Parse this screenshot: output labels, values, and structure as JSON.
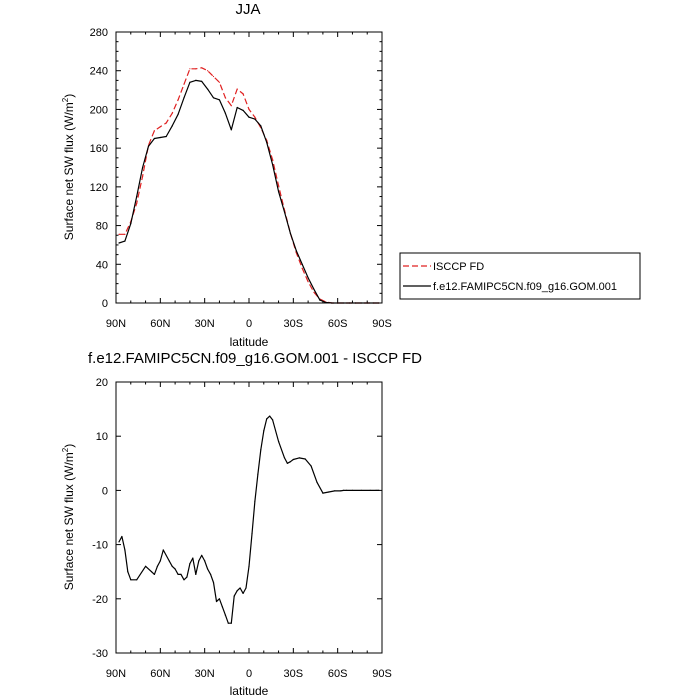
{
  "chart_data": [
    {
      "type": "line",
      "title": "JJA",
      "xlabel": "latitude",
      "ylabel": "Surface net SW flux (W/m²)",
      "ylabel_main": "Surface net SW flux (W/m",
      "ylabel_sup": "2",
      "ylabel_close": ")",
      "xlim": [
        90,
        -90
      ],
      "ylim": [
        0,
        280
      ],
      "xticks": [
        90,
        60,
        30,
        0,
        -30,
        -60,
        -90
      ],
      "xtick_labels": [
        "90N",
        "60N",
        "30N",
        "0",
        "30S",
        "60S",
        "90S"
      ],
      "yticks": [
        0,
        40,
        80,
        120,
        160,
        200,
        240,
        280
      ],
      "ytick_labels": [
        "0",
        "40",
        "80",
        "120",
        "160",
        "200",
        "240",
        "280"
      ],
      "legend": {
        "placement": "right",
        "entries": [
          "ISCCP FD",
          "f.e12.FAMIPC5CN.f09_g16.GOM.001"
        ]
      },
      "series": [
        {
          "name": "ISCCP FD",
          "color": "#e02020",
          "dash": "dashed",
          "x": [
            88,
            84,
            80,
            76,
            72,
            68,
            64,
            60,
            56,
            52,
            48,
            44,
            40,
            36,
            32,
            28,
            24,
            20,
            16,
            12,
            8,
            4,
            0,
            -4,
            -8,
            -12,
            -16,
            -20,
            -24,
            -28,
            -32,
            -36,
            -40,
            -44,
            -48,
            -52,
            -56,
            -60,
            -64,
            -68,
            -72,
            -76,
            -80,
            -84,
            -88
          ],
          "y": [
            71,
            71,
            84,
            103,
            131,
            163,
            178,
            182,
            186,
            196,
            210,
            226,
            242,
            242,
            243,
            240,
            234,
            228,
            212,
            204,
            221,
            216,
            200,
            192,
            181,
            168,
            148,
            121,
            96,
            72,
            52,
            36,
            22,
            11,
            4,
            1,
            0,
            0,
            0,
            0,
            0,
            0,
            0,
            0,
            0
          ]
        },
        {
          "name": "f.e12.FAMIPC5CN.f09_g16.GOM.001",
          "color": "#000000",
          "dash": "solid",
          "x": [
            88,
            84,
            80,
            76,
            72,
            68,
            64,
            60,
            56,
            52,
            48,
            44,
            40,
            36,
            32,
            28,
            24,
            20,
            16,
            12,
            8,
            4,
            0,
            -4,
            -8,
            -12,
            -16,
            -20,
            -24,
            -28,
            -32,
            -36,
            -40,
            -44,
            -48,
            -52,
            -56,
            -60,
            -64,
            -68,
            -72,
            -76,
            -80,
            -84,
            -88
          ],
          "y": [
            62,
            64,
            82,
            110,
            140,
            162,
            170,
            171,
            172,
            183,
            195,
            212,
            228,
            230,
            229,
            221,
            212,
            210,
            196,
            179,
            202,
            199,
            192,
            190,
            183,
            166,
            143,
            115,
            94,
            72,
            54,
            40,
            26,
            14,
            3,
            0.5,
            0,
            0,
            0,
            0,
            0,
            0,
            0,
            0,
            0
          ]
        }
      ]
    },
    {
      "type": "line",
      "title": "f.e12.FAMIPC5CN.f09_g16.GOM.001 - ISCCP FD",
      "xlabel": "latitude",
      "ylabel": "Surface net SW flux (W/m²)",
      "ylabel_main": "Surface net SW flux (W/m",
      "ylabel_sup": "2",
      "ylabel_close": ")",
      "xlim": [
        90,
        -90
      ],
      "ylim": [
        -30,
        20
      ],
      "xticks": [
        90,
        60,
        30,
        0,
        -30,
        -60,
        -90
      ],
      "xtick_labels": [
        "90N",
        "60N",
        "30N",
        "0",
        "30S",
        "60S",
        "90S"
      ],
      "yticks": [
        -30,
        -20,
        -10,
        0,
        10,
        20
      ],
      "ytick_labels": [
        "-30",
        "-20",
        "-10",
        "0",
        "10",
        "20"
      ],
      "series": [
        {
          "color": "#000000",
          "dash": "solid",
          "x": [
            88,
            86,
            84,
            82,
            80,
            76,
            70,
            66,
            64,
            62,
            60,
            58,
            54,
            52,
            50,
            48,
            46,
            44,
            42,
            40,
            38,
            36,
            34,
            32,
            30,
            28,
            26,
            24,
            22,
            20,
            18,
            16,
            14,
            12,
            10,
            8,
            6,
            4,
            2,
            0,
            -2,
            -4,
            -6,
            -8,
            -10,
            -12,
            -14,
            -16,
            -20,
            -24,
            -26,
            -28,
            -30,
            -34,
            -38,
            -42,
            -46,
            -50,
            -54,
            -58,
            -62,
            -64,
            -66,
            -70,
            -76,
            -82,
            -86,
            -88
          ],
          "y": [
            -9.5,
            -8.5,
            -11,
            -15,
            -16.5,
            -16.5,
            -14,
            -15,
            -15.5,
            -14,
            -13,
            -11,
            -13,
            -14,
            -14.5,
            -15.5,
            -15.5,
            -16.5,
            -16,
            -13.5,
            -12.5,
            -15.5,
            -13,
            -12,
            -13,
            -14.5,
            -15.5,
            -17,
            -20.5,
            -20,
            -21.5,
            -23,
            -24.5,
            -24.5,
            -19.5,
            -18.5,
            -18,
            -19,
            -18,
            -14,
            -8,
            -2,
            3,
            7.5,
            11,
            13.2,
            13.7,
            13,
            9,
            6,
            5,
            5.3,
            5.7,
            6,
            5.8,
            4.5,
            1.5,
            -0.5,
            -0.3,
            -0.1,
            -0.1,
            0,
            0,
            0,
            0,
            0,
            0,
            0
          ]
        }
      ]
    }
  ]
}
